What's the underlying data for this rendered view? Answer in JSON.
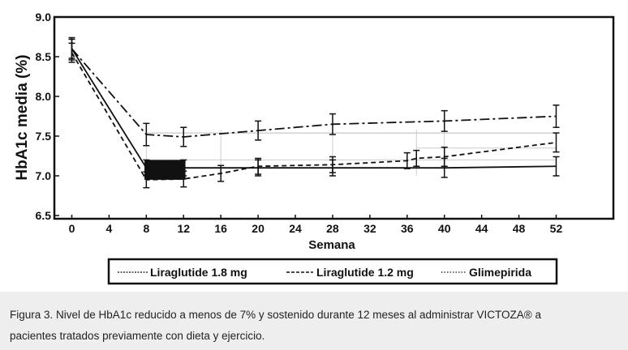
{
  "chart_data": {
    "type": "line",
    "xlabel": "Semana",
    "ylabel": "HbA1c media (%)",
    "x_ticks": [
      0,
      4,
      8,
      12,
      16,
      20,
      24,
      28,
      32,
      36,
      40,
      44,
      48,
      52
    ],
    "y_ticks": [
      6.5,
      7.0,
      7.5,
      8.0,
      8.5,
      9.0
    ],
    "y_tick_labels": [
      "6.5",
      "7.0",
      "7.5",
      "8.0",
      "8.5",
      "9.0"
    ],
    "xlim": [
      -2,
      54
    ],
    "ylim": [
      6.5,
      9.0
    ],
    "grid": false,
    "legend_position": "bottom",
    "series": [
      {
        "name": "Liraglutide 1.8 mg",
        "style": "solid",
        "x": [
          0,
          8,
          12,
          20,
          28,
          40,
          52
        ],
        "y": [
          8.6,
          7.1,
          7.1,
          7.1,
          7.1,
          7.1,
          7.12
        ],
        "err": [
          0.12,
          0.1,
          0.1,
          0.1,
          0.1,
          0.12,
          0.12
        ]
      },
      {
        "name": "Liraglutide 1.2 mg",
        "style": "dashed",
        "x": [
          0,
          8,
          12,
          16,
          20,
          28,
          36,
          37,
          40,
          52
        ],
        "y": [
          8.55,
          6.95,
          6.96,
          7.03,
          7.12,
          7.14,
          7.19,
          7.22,
          7.24,
          7.42
        ],
        "err": [
          0.12,
          0.1,
          0.1,
          0.1,
          0.1,
          0.1,
          0.1,
          0.1,
          0.12,
          0.12
        ]
      },
      {
        "name": "Glimepirida",
        "style": "dashdot",
        "x": [
          0,
          8,
          12,
          20,
          28,
          40,
          52
        ],
        "y": [
          8.6,
          7.52,
          7.49,
          7.57,
          7.65,
          7.69,
          7.75
        ],
        "err": [
          0.14,
          0.14,
          0.12,
          0.12,
          0.13,
          0.13,
          0.14
        ]
      }
    ]
  },
  "caption": {
    "line1": "Figura 3. Nivel de HbA1c reducido a menos de 7% y sostenido durante 12 meses al administrar VICTOZA® a",
    "line2": "pacientes tratados previamente con dieta y ejercicio."
  },
  "colors": {
    "line": "#111111",
    "background": "#ffffff",
    "caption_bg": "#eeeeee"
  }
}
